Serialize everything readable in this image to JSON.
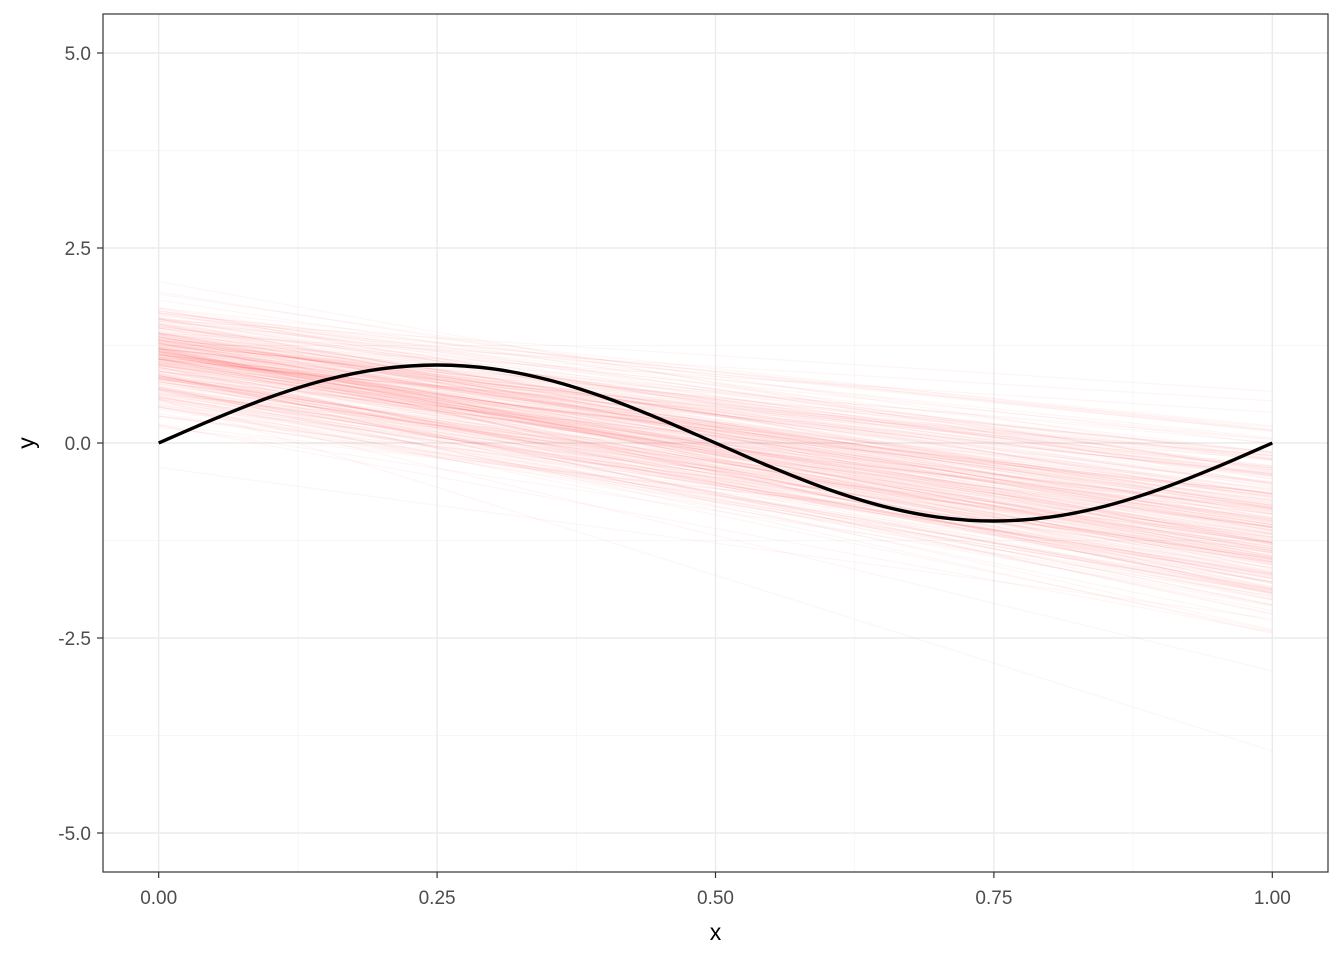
{
  "chart_data": {
    "type": "line",
    "title": "",
    "xlabel": "x",
    "ylabel": "y",
    "xlim": [
      -0.05,
      1.05
    ],
    "ylim": [
      -5.5,
      5.5
    ],
    "x_ticks": [
      0.0,
      0.25,
      0.5,
      0.75,
      1.0
    ],
    "x_tick_labels": [
      "0.00",
      "0.25",
      "0.50",
      "0.75",
      "1.00"
    ],
    "y_ticks": [
      -5.0,
      -2.5,
      0.0,
      2.5,
      5.0
    ],
    "y_tick_labels": [
      "-5.0",
      "-2.5",
      "0.0",
      "2.5",
      "5.0"
    ],
    "grid": true,
    "series": [
      {
        "kind": "sampled-lines",
        "color": "#ff0000",
        "opacity": 0.04,
        "count": 300,
        "x_range": [
          0.0,
          1.0
        ],
        "intercept_at_x0_center": 1.1,
        "intercept_spread_sd": 0.35,
        "slope_center": -2.2,
        "slope_spread_sd": 0.55
      },
      {
        "kind": "curve",
        "color": "#000000",
        "x": [
          0.0,
          0.05,
          0.1,
          0.15,
          0.2,
          0.25,
          0.3,
          0.35,
          0.4,
          0.45,
          0.5,
          0.55,
          0.6,
          0.65,
          0.7,
          0.75,
          0.8,
          0.85,
          0.9,
          0.95,
          1.0
        ],
        "y": [
          0.0,
          0.309,
          0.588,
          0.809,
          0.951,
          1.0,
          0.951,
          0.809,
          0.588,
          0.309,
          0.0,
          -0.309,
          -0.588,
          -0.809,
          -0.951,
          -1.0,
          -0.951,
          -0.809,
          -0.588,
          -0.309,
          0.0
        ]
      }
    ]
  }
}
